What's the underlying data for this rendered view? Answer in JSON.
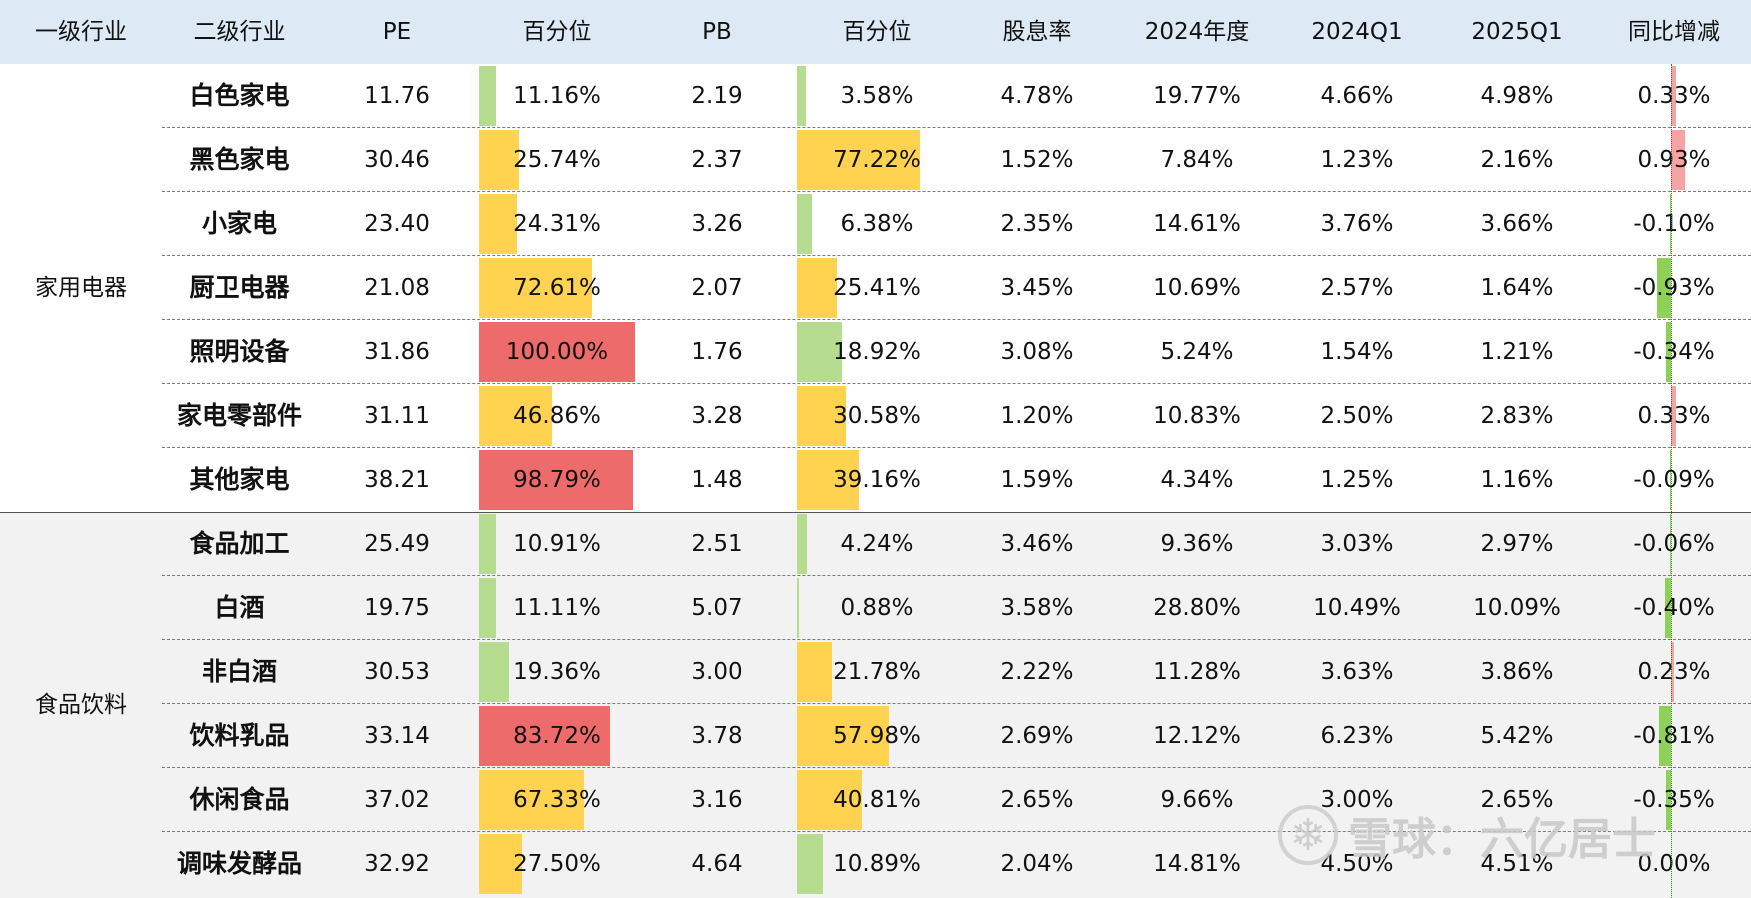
{
  "colors": {
    "header_bg": "#ddeaf6",
    "bar_green": "#b5dc8f",
    "bar_yellow": "#ffd34f",
    "bar_red": "#ee6b6b",
    "delta_positive": "#f7a3a3",
    "delta_negative": "#8ed157",
    "group_alt_bg": "#f2f2f2"
  },
  "header": {
    "l1": "一级行业",
    "l2": "二级行业",
    "pe": "PE",
    "pe_pct": "百分位",
    "pb": "PB",
    "pb_pct": "百分位",
    "div": "股息率",
    "y2024": "2024年度",
    "q2024": "2024Q1",
    "q2025": "2025Q1",
    "yoy": "同比增减"
  },
  "groups": [
    {
      "name": "家用电器"
    },
    {
      "name": "食品饮料"
    }
  ],
  "rows": [
    {
      "name": "白色家电",
      "pe": "11.76",
      "pe_pct": "11.16%",
      "pe_pct_value": 11.16,
      "pb": "2.19",
      "pb_pct": "3.58%",
      "pb_pct_value": 3.58,
      "div": "4.78%",
      "y2024": "19.77%",
      "q2024": "4.66%",
      "q2025": "4.98%",
      "yoy": "0.33%",
      "yoy_value": 0.33
    },
    {
      "name": "黑色家电",
      "pe": "30.46",
      "pe_pct": "25.74%",
      "pe_pct_value": 25.74,
      "pb": "2.37",
      "pb_pct": "77.22%",
      "pb_pct_value": 77.22,
      "div": "1.52%",
      "y2024": "7.84%",
      "q2024": "1.23%",
      "q2025": "2.16%",
      "yoy": "0.93%",
      "yoy_value": 0.93
    },
    {
      "name": "小家电",
      "pe": "23.40",
      "pe_pct": "24.31%",
      "pe_pct_value": 24.31,
      "pb": "3.26",
      "pb_pct": "6.38%",
      "pb_pct_value": 6.38,
      "div": "2.35%",
      "y2024": "14.61%",
      "q2024": "3.76%",
      "q2025": "3.66%",
      "yoy": "-0.10%",
      "yoy_value": -0.1
    },
    {
      "name": "厨卫电器",
      "pe": "21.08",
      "pe_pct": "72.61%",
      "pe_pct_value": 72.61,
      "pb": "2.07",
      "pb_pct": "25.41%",
      "pb_pct_value": 25.41,
      "div": "3.45%",
      "y2024": "10.69%",
      "q2024": "2.57%",
      "q2025": "1.64%",
      "yoy": "-0.93%",
      "yoy_value": -0.93
    },
    {
      "name": "照明设备",
      "pe": "31.86",
      "pe_pct": "100.00%",
      "pe_pct_value": 100.0,
      "pb": "1.76",
      "pb_pct": "18.92%",
      "pb_pct_value": 18.92,
      "div": "3.08%",
      "y2024": "5.24%",
      "q2024": "1.54%",
      "q2025": "1.21%",
      "yoy": "-0.34%",
      "yoy_value": -0.34
    },
    {
      "name": "家电零部件",
      "pe": "31.11",
      "pe_pct": "46.86%",
      "pe_pct_value": 46.86,
      "pb": "3.28",
      "pb_pct": "30.58%",
      "pb_pct_value": 30.58,
      "div": "1.20%",
      "y2024": "10.83%",
      "q2024": "2.50%",
      "q2025": "2.83%",
      "yoy": "0.33%",
      "yoy_value": 0.33
    },
    {
      "name": "其他家电",
      "pe": "38.21",
      "pe_pct": "98.79%",
      "pe_pct_value": 98.79,
      "pb": "1.48",
      "pb_pct": "39.16%",
      "pb_pct_value": 39.16,
      "div": "1.59%",
      "y2024": "4.34%",
      "q2024": "1.25%",
      "q2025": "1.16%",
      "yoy": "-0.09%",
      "yoy_value": -0.09
    },
    {
      "name": "食品加工",
      "pe": "25.49",
      "pe_pct": "10.91%",
      "pe_pct_value": 10.91,
      "pb": "2.51",
      "pb_pct": "4.24%",
      "pb_pct_value": 4.24,
      "div": "3.46%",
      "y2024": "9.36%",
      "q2024": "3.03%",
      "q2025": "2.97%",
      "yoy": "-0.06%",
      "yoy_value": -0.06
    },
    {
      "name": "白酒",
      "pe": "19.75",
      "pe_pct": "11.11%",
      "pe_pct_value": 11.11,
      "pb": "5.07",
      "pb_pct": "0.88%",
      "pb_pct_value": 0.88,
      "div": "3.58%",
      "y2024": "28.80%",
      "q2024": "10.49%",
      "q2025": "10.09%",
      "yoy": "-0.40%",
      "yoy_value": -0.4
    },
    {
      "name": "非白酒",
      "pe": "30.53",
      "pe_pct": "19.36%",
      "pe_pct_value": 19.36,
      "pb": "3.00",
      "pb_pct": "21.78%",
      "pb_pct_value": 21.78,
      "div": "2.22%",
      "y2024": "11.28%",
      "q2024": "3.63%",
      "q2025": "3.86%",
      "yoy": "0.23%",
      "yoy_value": 0.23
    },
    {
      "name": "饮料乳品",
      "pe": "33.14",
      "pe_pct": "83.72%",
      "pe_pct_value": 83.72,
      "pb": "3.78",
      "pb_pct": "57.98%",
      "pb_pct_value": 57.98,
      "div": "2.69%",
      "y2024": "12.12%",
      "q2024": "6.23%",
      "q2025": "5.42%",
      "yoy": "-0.81%",
      "yoy_value": -0.81
    },
    {
      "name": "休闲食品",
      "pe": "37.02",
      "pe_pct": "67.33%",
      "pe_pct_value": 67.33,
      "pb": "3.16",
      "pb_pct": "40.81%",
      "pb_pct_value": 40.81,
      "div": "2.65%",
      "y2024": "9.66%",
      "q2024": "3.00%",
      "q2025": "2.65%",
      "yoy": "-0.35%",
      "yoy_value": -0.35
    },
    {
      "name": "调味发酵品",
      "pe": "32.92",
      "pe_pct": "27.50%",
      "pe_pct_value": 27.5,
      "pb": "4.64",
      "pb_pct": "10.89%",
      "pb_pct_value": 10.89,
      "div": "2.04%",
      "y2024": "14.81%",
      "q2024": "4.50%",
      "q2025": "4.51%",
      "yoy": "0.00%",
      "yoy_value": 0.0
    }
  ],
  "watermark": {
    "text": "雪球：六亿居士"
  }
}
